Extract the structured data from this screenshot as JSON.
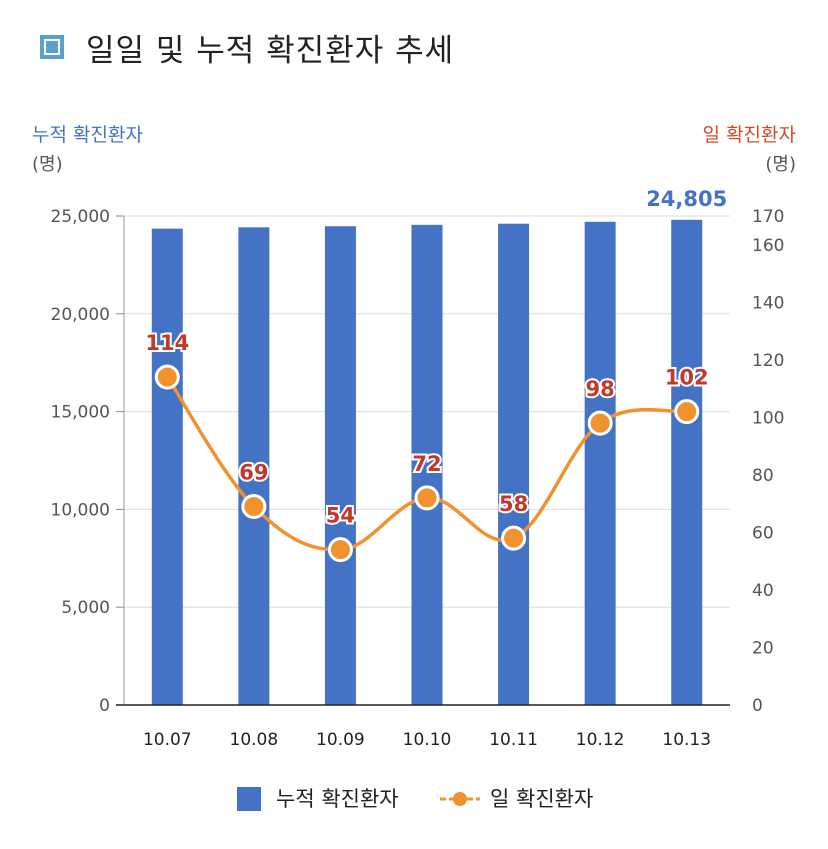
{
  "title": "일일 및 누적 확진환자 추세",
  "colors": {
    "bar": "#4472c4",
    "line": "#f0922e",
    "line_label": "#c0392b",
    "title_icon": "#5aa0cc"
  },
  "chart_data": {
    "type": "bar",
    "categories": [
      "10.07",
      "10.08",
      "10.09",
      "10.10",
      "10.11",
      "10.12",
      "10.13"
    ],
    "series": [
      {
        "name": "누적 확진환자",
        "type": "bar",
        "axis": "left",
        "values": [
          24353,
          24422,
          24476,
          24548,
          24606,
          24703,
          24805
        ]
      },
      {
        "name": "일 확진환자",
        "type": "line",
        "axis": "right",
        "values": [
          114,
          69,
          54,
          72,
          58,
          98,
          102
        ]
      }
    ],
    "left_axis": {
      "title": "누적 확진환자",
      "unit": "(명)",
      "ylim": [
        0,
        25000
      ],
      "ticks": [
        0,
        5000,
        10000,
        15000,
        20000,
        25000
      ],
      "tick_labels": [
        "0",
        "5,000",
        "10,000",
        "15,000",
        "20,000",
        "25,000"
      ]
    },
    "right_axis": {
      "title": "일 확진환자",
      "unit": "(명)",
      "ylim": [
        0,
        170
      ],
      "ticks": [
        0,
        20,
        40,
        60,
        80,
        100,
        120,
        140,
        160,
        170
      ],
      "tick_labels": [
        "0",
        "20",
        "40",
        "60",
        "80",
        "100",
        "120",
        "140",
        "160",
        "170"
      ]
    },
    "bar_last_label": "24,805",
    "line_labels": [
      "114",
      "69",
      "54",
      "72",
      "58",
      "98",
      "102"
    ],
    "legend": [
      "누적 확진환자",
      "일 확진환자"
    ],
    "legend_position": "bottom",
    "grid": true
  }
}
